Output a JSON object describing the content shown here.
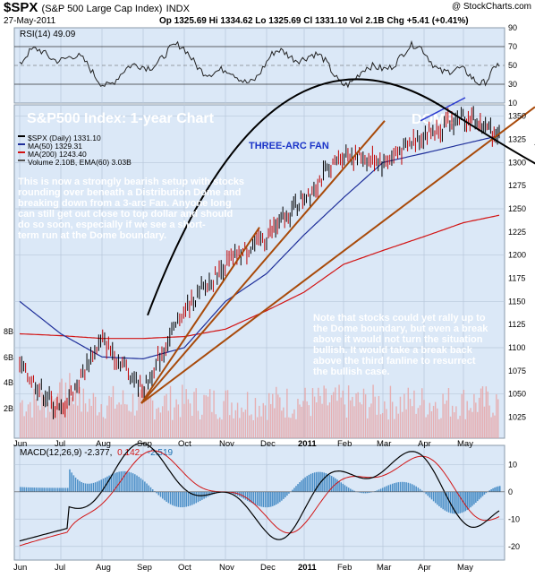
{
  "header": {
    "symbol": "$SPX",
    "name": "(S&P 500 Large Cap Index)",
    "exchange": "INDX",
    "date": "27-May-2011",
    "ohlc": "Op 1325.69  Hi 1334.62  Lo 1325.69  Cl 1331.10  Vol 2.1B  Chg +5.41 (+0.41%)",
    "copyright": "@ StockCharts.com"
  },
  "rsi": {
    "label": "RSI(14) 49.09",
    "ticks": [
      "90",
      "70",
      "50",
      "30",
      "10"
    ]
  },
  "price_panel": {
    "title": "S&P500 Index: 1-year Chart",
    "dome_label": "DOME",
    "fan_label": "THREE-ARC FAN",
    "legend": [
      {
        "text": "$SPX (Daily) 1331.10",
        "color": "#000000"
      },
      {
        "text": "MA(50) 1329.31",
        "color": "#1f2f9a"
      },
      {
        "text": "MA(200) 1243.40",
        "color": "#d21414"
      },
      {
        "text": "Volume 2.10B, EMA(60) 3.03B",
        "color": "#555555"
      }
    ],
    "commentary_1": [
      "This is now a strongly bearish setup with stocks",
      "rounding over beneath a Distribution Dome and",
      "breaking down from a 3-arc Fan. Anyone long",
      "can still get out close to top dollar and should",
      "do so soon, especially if we see a short-",
      "term run at the Dome boundary."
    ],
    "commentary_2": [
      "Note that stocks could yet rally up to",
      "the Dome boundary, but even a break",
      "above it would not turn the situation",
      "bullish. It would take a break back",
      "above the third fanline to resurrect",
      "the bullish case."
    ],
    "right_ticks": [
      "1350",
      "1325",
      "1300",
      "1275",
      "1250",
      "1225",
      "1200",
      "1175",
      "1150",
      "1125",
      "1100",
      "1075",
      "1050",
      "1025"
    ],
    "volume_ticks": [
      "8B",
      "6B",
      "4B",
      "2B"
    ]
  },
  "macd": {
    "label_main": "MACD(12,26,9) -2.377,",
    "label_signal": "0.142,",
    "label_hist": "-2.519",
    "ticks": [
      "10",
      "0",
      "-10",
      "-20"
    ]
  },
  "x_axis": {
    "labels": [
      "Jun",
      "Jul",
      "Aug",
      "Sep",
      "Oct",
      "Nov",
      "Dec",
      "2011",
      "Feb",
      "Mar",
      "Apr",
      "May"
    ]
  },
  "colors": {
    "panel_bg": "#dbe8f7",
    "grid": "#b8c7da",
    "accent_text": "#1a33c8",
    "fan": "#a84a0a",
    "ma50": "#1f2f9a",
    "ma200": "#d21414",
    "dome": "#000000"
  },
  "chart_data": {
    "type": "line",
    "title": "S&P500 Index: 1-year Chart",
    "ylim": [
      1010,
      1370
    ],
    "xlabel": "",
    "ylabel": "",
    "x": [
      "Jun",
      "Jul",
      "Aug",
      "Sep",
      "Oct",
      "Nov",
      "Dec",
      "2011",
      "Feb",
      "Mar",
      "Apr",
      "May",
      "May-27"
    ],
    "series": [
      {
        "name": "$SPX (Daily) 1331.10",
        "values": [
          1080,
          1030,
          1110,
          1055,
          1140,
          1190,
          1220,
          1262,
          1310,
          1300,
          1330,
          1350,
          1331
        ]
      },
      {
        "name": "MA(50) 1329.31",
        "values": [
          1150,
          1115,
          1090,
          1088,
          1100,
          1150,
          1180,
          1222,
          1262,
          1300,
          1310,
          1320,
          1329
        ]
      },
      {
        "name": "MA(200) 1243.40",
        "values": [
          1115,
          1113,
          1110,
          1110,
          1112,
          1120,
          1140,
          1160,
          1190,
          1205,
          1220,
          1235,
          1243
        ]
      }
    ],
    "rsi": {
      "name": "RSI(14) 49.09",
      "last": 49.09,
      "ylim": [
        10,
        90
      ]
    },
    "macd": {
      "macd": -2.377,
      "signal": 0.142,
      "histogram": -2.519,
      "ylim": [
        -25,
        17
      ]
    },
    "volume": {
      "last": "2.10B",
      "ema60": "3.03B"
    }
  }
}
